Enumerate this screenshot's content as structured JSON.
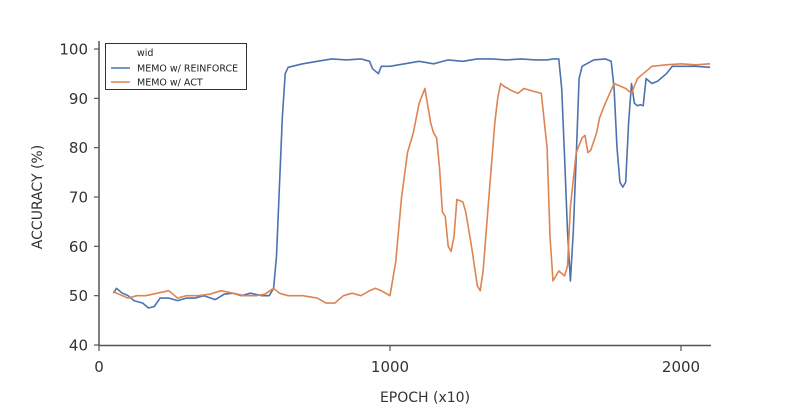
{
  "chart_data": {
    "type": "line",
    "title": "",
    "xlabel": "EPOCH (x10)",
    "ylabel": "ACCURACY (%)",
    "xlim": [
      0,
      2100
    ],
    "ylim": [
      40,
      100
    ],
    "xticks": [
      0,
      1000,
      2000
    ],
    "yticks": [
      40,
      50,
      60,
      70,
      80,
      90,
      100
    ],
    "grid": false,
    "legend": {
      "position": "upper left",
      "title": "wid",
      "entries": [
        "MEMO w/ REINFORCE",
        "MEMO w/ ACT"
      ]
    },
    "series": [
      {
        "name": "MEMO w/ REINFORCE",
        "color": "#4C72B0",
        "points": [
          [
            50,
            50.5
          ],
          [
            60,
            51.5
          ],
          [
            80,
            50.5
          ],
          [
            100,
            50
          ],
          [
            120,
            49
          ],
          [
            150,
            48.5
          ],
          [
            170,
            47.5
          ],
          [
            190,
            47.8
          ],
          [
            210,
            49.5
          ],
          [
            240,
            49.5
          ],
          [
            270,
            49
          ],
          [
            300,
            49.5
          ],
          [
            330,
            49.5
          ],
          [
            360,
            50
          ],
          [
            400,
            49.2
          ],
          [
            430,
            50.3
          ],
          [
            460,
            50.5
          ],
          [
            490,
            50
          ],
          [
            520,
            50.5
          ],
          [
            560,
            50
          ],
          [
            585,
            50
          ],
          [
            600,
            51.5
          ],
          [
            610,
            58
          ],
          [
            620,
            72
          ],
          [
            630,
            86
          ],
          [
            640,
            95
          ],
          [
            650,
            96.3
          ],
          [
            700,
            97
          ],
          [
            750,
            97.5
          ],
          [
            800,
            98
          ],
          [
            850,
            97.8
          ],
          [
            900,
            98
          ],
          [
            930,
            97.5
          ],
          [
            940,
            96
          ],
          [
            960,
            95
          ],
          [
            970,
            96.5
          ],
          [
            1000,
            96.5
          ],
          [
            1050,
            97
          ],
          [
            1100,
            97.5
          ],
          [
            1150,
            97
          ],
          [
            1200,
            97.8
          ],
          [
            1250,
            97.5
          ],
          [
            1300,
            98
          ],
          [
            1350,
            98
          ],
          [
            1400,
            97.8
          ],
          [
            1450,
            98
          ],
          [
            1500,
            97.8
          ],
          [
            1540,
            97.8
          ],
          [
            1560,
            98
          ],
          [
            1580,
            98
          ],
          [
            1590,
            92
          ],
          [
            1600,
            78
          ],
          [
            1610,
            63
          ],
          [
            1620,
            53
          ],
          [
            1630,
            63
          ],
          [
            1640,
            78
          ],
          [
            1650,
            94
          ],
          [
            1660,
            96.5
          ],
          [
            1700,
            97.8
          ],
          [
            1740,
            98
          ],
          [
            1760,
            97.5
          ],
          [
            1770,
            92
          ],
          [
            1780,
            80
          ],
          [
            1790,
            73
          ],
          [
            1800,
            72
          ],
          [
            1810,
            73
          ],
          [
            1820,
            85
          ],
          [
            1830,
            93
          ],
          [
            1840,
            89
          ],
          [
            1850,
            88.5
          ],
          [
            1860,
            88.7
          ],
          [
            1870,
            88.5
          ],
          [
            1880,
            94
          ],
          [
            1900,
            93
          ],
          [
            1920,
            93.5
          ],
          [
            1950,
            95
          ],
          [
            1970,
            96.5
          ],
          [
            2000,
            96.5
          ],
          [
            2050,
            96.5
          ],
          [
            2100,
            96.3
          ]
        ]
      },
      {
        "name": "MEMO w/ ACT",
        "color": "#DD8452",
        "points": [
          [
            50,
            51
          ],
          [
            60,
            50.5
          ],
          [
            80,
            50
          ],
          [
            100,
            49.5
          ],
          [
            130,
            50
          ],
          [
            160,
            50
          ],
          [
            200,
            50.5
          ],
          [
            240,
            51
          ],
          [
            270,
            49.5
          ],
          [
            300,
            50
          ],
          [
            340,
            50
          ],
          [
            380,
            50.3
          ],
          [
            420,
            51
          ],
          [
            460,
            50.5
          ],
          [
            500,
            50
          ],
          [
            540,
            50
          ],
          [
            570,
            50.3
          ],
          [
            600,
            51.5
          ],
          [
            620,
            50.5
          ],
          [
            650,
            50
          ],
          [
            700,
            50
          ],
          [
            750,
            49.5
          ],
          [
            780,
            48.5
          ],
          [
            810,
            48.5
          ],
          [
            840,
            50
          ],
          [
            870,
            50.5
          ],
          [
            900,
            50
          ],
          [
            930,
            51
          ],
          [
            950,
            51.5
          ],
          [
            970,
            51
          ],
          [
            1000,
            50
          ],
          [
            1020,
            57
          ],
          [
            1040,
            70
          ],
          [
            1060,
            79
          ],
          [
            1080,
            83
          ],
          [
            1100,
            89
          ],
          [
            1120,
            92
          ],
          [
            1140,
            85
          ],
          [
            1150,
            83
          ],
          [
            1160,
            82
          ],
          [
            1170,
            76
          ],
          [
            1180,
            67
          ],
          [
            1190,
            66
          ],
          [
            1200,
            60
          ],
          [
            1210,
            59
          ],
          [
            1220,
            62
          ],
          [
            1230,
            69.5
          ],
          [
            1250,
            69
          ],
          [
            1260,
            67
          ],
          [
            1280,
            60
          ],
          [
            1300,
            52
          ],
          [
            1310,
            51
          ],
          [
            1320,
            55
          ],
          [
            1340,
            70
          ],
          [
            1360,
            85
          ],
          [
            1370,
            90
          ],
          [
            1380,
            93
          ],
          [
            1390,
            92.5
          ],
          [
            1420,
            91.5
          ],
          [
            1440,
            91
          ],
          [
            1460,
            92
          ],
          [
            1500,
            91.3
          ],
          [
            1520,
            91
          ],
          [
            1540,
            80
          ],
          [
            1550,
            62
          ],
          [
            1560,
            53
          ],
          [
            1570,
            54
          ],
          [
            1580,
            55
          ],
          [
            1600,
            54
          ],
          [
            1610,
            56
          ],
          [
            1620,
            68
          ],
          [
            1640,
            79
          ],
          [
            1660,
            82
          ],
          [
            1670,
            82.5
          ],
          [
            1680,
            79
          ],
          [
            1690,
            79.5
          ],
          [
            1710,
            83
          ],
          [
            1720,
            86
          ],
          [
            1740,
            89
          ],
          [
            1770,
            93
          ],
          [
            1790,
            92.5
          ],
          [
            1810,
            92
          ],
          [
            1830,
            91
          ],
          [
            1850,
            94
          ],
          [
            1870,
            95
          ],
          [
            1900,
            96.5
          ],
          [
            1950,
            96.8
          ],
          [
            2000,
            97
          ],
          [
            2050,
            96.8
          ],
          [
            2100,
            97
          ]
        ]
      }
    ]
  }
}
